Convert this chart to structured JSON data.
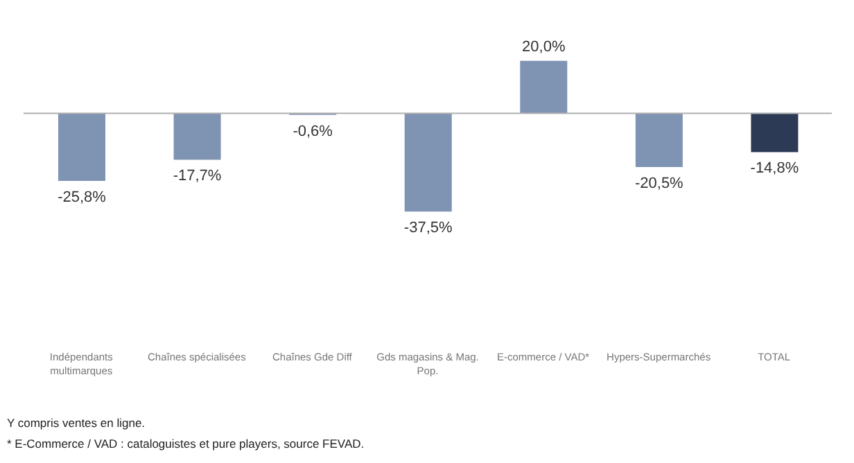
{
  "chart_data": {
    "type": "bar",
    "categories": [
      "Indépendants multimarques",
      "Chaînes spécialisées",
      "Chaînes Gde Diff",
      "Gds magasins & Mag. Pop.",
      "E-commerce / VAD*",
      "Hypers-Supermarchés",
      "TOTAL"
    ],
    "values": [
      -25.8,
      -17.7,
      -0.6,
      -37.5,
      20.0,
      -20.5,
      -14.8
    ],
    "colors": [
      "#7f93b3",
      "#7f93b3",
      "#7f93b3",
      "#7f93b3",
      "#7f93b3",
      "#7f93b3",
      "#2c3a55"
    ],
    "value_labels": [
      "-25,8%",
      "-17,7%",
      "-0,6%",
      "-37,5%",
      "20,0%",
      "-20,5%",
      "-14,8%"
    ],
    "ref_lines": [
      {
        "axis": "y",
        "value": 0,
        "color": "#b0b0b0"
      }
    ],
    "annotations": [
      "Y compris ventes en ligne.",
      "* E-Commerce / VAD : cataloguistes et pure players, source FEVAD."
    ],
    "grid": false,
    "legend": false
  }
}
